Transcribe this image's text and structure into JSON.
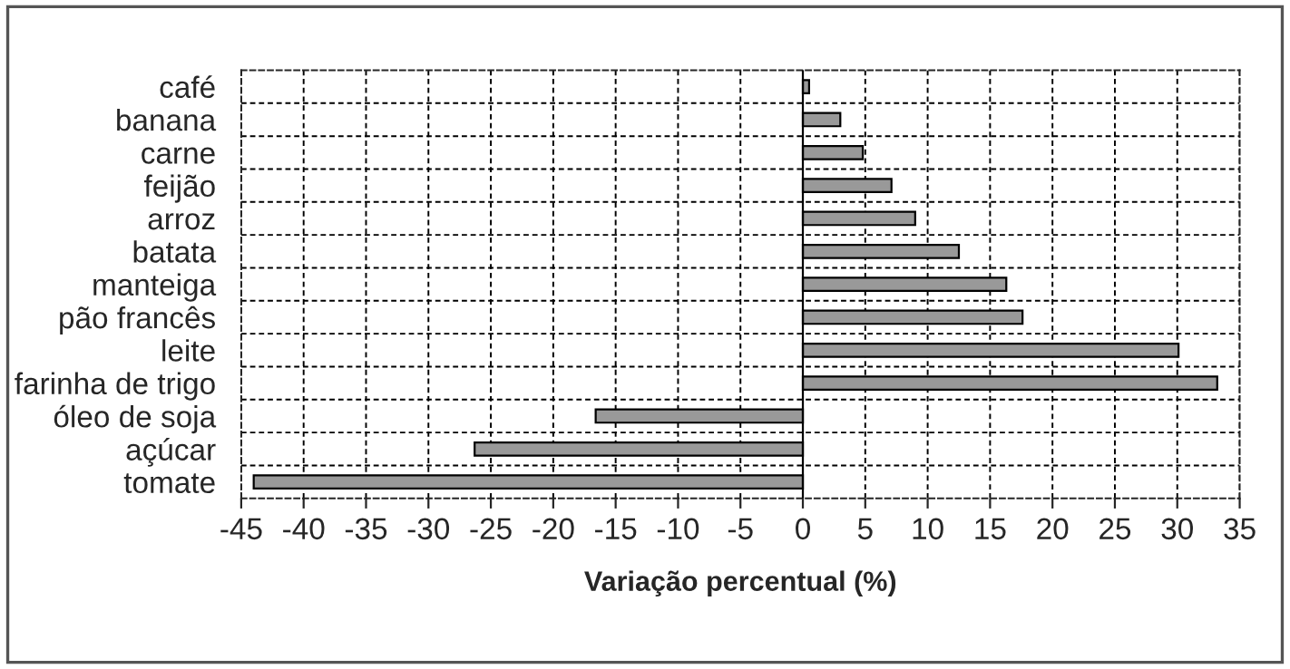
{
  "chart_data": {
    "type": "bar",
    "orientation": "horizontal",
    "xlabel": "Variação percentual (%)",
    "categories": [
      "café",
      "banana",
      "carne",
      "feijão",
      "arroz",
      "batata",
      "manteiga",
      "pão francês",
      "leite",
      "farinha de trigo",
      "óleo de soja",
      "açúcar",
      "tomate"
    ],
    "values": [
      0.5,
      3,
      4.8,
      7.1,
      9,
      12.5,
      16.3,
      17.6,
      30.1,
      33.2,
      -16.6,
      -26.3,
      -44
    ],
    "color": "#999999",
    "xlim": [
      -45,
      35
    ],
    "xticks": [
      -45,
      -40,
      -35,
      -30,
      -25,
      -20,
      -15,
      -10,
      -5,
      0,
      5,
      10,
      15,
      20,
      25,
      30,
      35
    ],
    "grid": true
  }
}
